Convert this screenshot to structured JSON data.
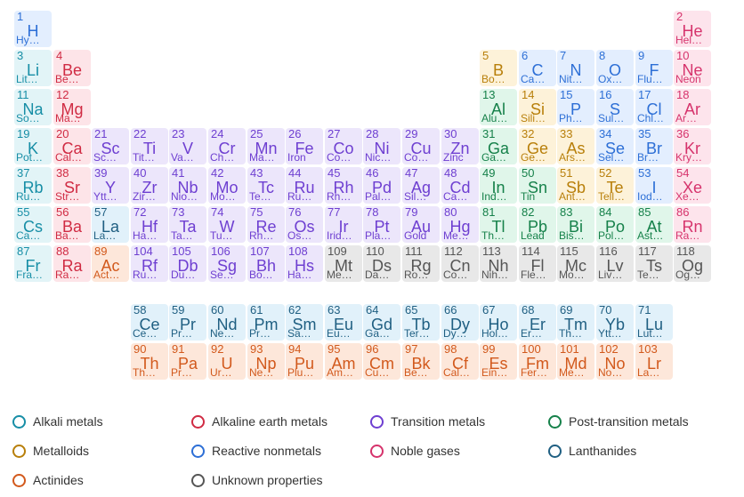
{
  "colors": {
    "alkali": "#178ea6",
    "alkaline": "#d02b43",
    "transition": "#6e3fd1",
    "post": "#16814a",
    "metalloid": "#b87f0a",
    "nonmetal": "#2d6fd6",
    "noble": "#d6336c",
    "lanth": "#1f5f82",
    "actin": "#d2591c",
    "unknown": "#555555"
  },
  "elements": [
    {
      "n": "1",
      "s": "H",
      "name": "Hy…",
      "cat": "nonmetal",
      "row": 1,
      "col": 1
    },
    {
      "n": "2",
      "s": "He",
      "name": "Hel…",
      "cat": "noble",
      "row": 1,
      "col": 18
    },
    {
      "n": "3",
      "s": "Li",
      "name": "Lit…",
      "cat": "alkali",
      "row": 2,
      "col": 1
    },
    {
      "n": "4",
      "s": "Be",
      "name": "Be…",
      "cat": "alkaline",
      "row": 2,
      "col": 2
    },
    {
      "n": "5",
      "s": "B",
      "name": "Bo…",
      "cat": "metalloid",
      "row": 2,
      "col": 13
    },
    {
      "n": "6",
      "s": "C",
      "name": "Ca…",
      "cat": "nonmetal",
      "row": 2,
      "col": 14
    },
    {
      "n": "7",
      "s": "N",
      "name": "Nit…",
      "cat": "nonmetal",
      "row": 2,
      "col": 15
    },
    {
      "n": "8",
      "s": "O",
      "name": "Ox…",
      "cat": "nonmetal",
      "row": 2,
      "col": 16
    },
    {
      "n": "9",
      "s": "F",
      "name": "Flu…",
      "cat": "nonmetal",
      "row": 2,
      "col": 17
    },
    {
      "n": "10",
      "s": "Ne",
      "name": "Neon",
      "cat": "noble",
      "row": 2,
      "col": 18
    },
    {
      "n": "11",
      "s": "Na",
      "name": "So…",
      "cat": "alkali",
      "row": 3,
      "col": 1
    },
    {
      "n": "12",
      "s": "Mg",
      "name": "Ma…",
      "cat": "alkaline",
      "row": 3,
      "col": 2
    },
    {
      "n": "13",
      "s": "Al",
      "name": "Alu…",
      "cat": "post",
      "row": 3,
      "col": 13
    },
    {
      "n": "14",
      "s": "Si",
      "name": "Sili…",
      "cat": "metalloid",
      "row": 3,
      "col": 14
    },
    {
      "n": "15",
      "s": "P",
      "name": "Ph…",
      "cat": "nonmetal",
      "row": 3,
      "col": 15
    },
    {
      "n": "16",
      "s": "S",
      "name": "Sul…",
      "cat": "nonmetal",
      "row": 3,
      "col": 16
    },
    {
      "n": "17",
      "s": "Cl",
      "name": "Chl…",
      "cat": "nonmetal",
      "row": 3,
      "col": 17
    },
    {
      "n": "18",
      "s": "Ar",
      "name": "Ar…",
      "cat": "noble",
      "row": 3,
      "col": 18
    },
    {
      "n": "19",
      "s": "K",
      "name": "Pot…",
      "cat": "alkali",
      "row": 4,
      "col": 1
    },
    {
      "n": "20",
      "s": "Ca",
      "name": "Cal…",
      "cat": "alkaline",
      "row": 4,
      "col": 2
    },
    {
      "n": "21",
      "s": "Sc",
      "name": "Sc…",
      "cat": "transition",
      "row": 4,
      "col": 3
    },
    {
      "n": "22",
      "s": "Ti",
      "name": "Tit…",
      "cat": "transition",
      "row": 4,
      "col": 4
    },
    {
      "n": "23",
      "s": "V",
      "name": "Va…",
      "cat": "transition",
      "row": 4,
      "col": 5
    },
    {
      "n": "24",
      "s": "Cr",
      "name": "Ch…",
      "cat": "transition",
      "row": 4,
      "col": 6
    },
    {
      "n": "25",
      "s": "Mn",
      "name": "Ma…",
      "cat": "transition",
      "row": 4,
      "col": 7
    },
    {
      "n": "26",
      "s": "Fe",
      "name": "Iron",
      "cat": "transition",
      "row": 4,
      "col": 8
    },
    {
      "n": "27",
      "s": "Co",
      "name": "Co…",
      "cat": "transition",
      "row": 4,
      "col": 9
    },
    {
      "n": "28",
      "s": "Ni",
      "name": "Nic…",
      "cat": "transition",
      "row": 4,
      "col": 10
    },
    {
      "n": "29",
      "s": "Cu",
      "name": "Co…",
      "cat": "transition",
      "row": 4,
      "col": 11
    },
    {
      "n": "30",
      "s": "Zn",
      "name": "Zinc",
      "cat": "transition",
      "row": 4,
      "col": 12
    },
    {
      "n": "31",
      "s": "Ga",
      "name": "Ga…",
      "cat": "post",
      "row": 4,
      "col": 13
    },
    {
      "n": "32",
      "s": "Ge",
      "name": "Ge…",
      "cat": "metalloid",
      "row": 4,
      "col": 14
    },
    {
      "n": "33",
      "s": "As",
      "name": "Ars…",
      "cat": "metalloid",
      "row": 4,
      "col": 15
    },
    {
      "n": "34",
      "s": "Se",
      "name": "Sel…",
      "cat": "nonmetal",
      "row": 4,
      "col": 16
    },
    {
      "n": "35",
      "s": "Br",
      "name": "Br…",
      "cat": "nonmetal",
      "row": 4,
      "col": 17
    },
    {
      "n": "36",
      "s": "Kr",
      "name": "Kry…",
      "cat": "noble",
      "row": 4,
      "col": 18
    },
    {
      "n": "37",
      "s": "Rb",
      "name": "Ru…",
      "cat": "alkali",
      "row": 5,
      "col": 1
    },
    {
      "n": "38",
      "s": "Sr",
      "name": "Str…",
      "cat": "alkaline",
      "row": 5,
      "col": 2
    },
    {
      "n": "39",
      "s": "Y",
      "name": "Ytt…",
      "cat": "transition",
      "row": 5,
      "col": 3
    },
    {
      "n": "40",
      "s": "Zr",
      "name": "Zir…",
      "cat": "transition",
      "row": 5,
      "col": 4
    },
    {
      "n": "41",
      "s": "Nb",
      "name": "Nio…",
      "cat": "transition",
      "row": 5,
      "col": 5
    },
    {
      "n": "42",
      "s": "Mo",
      "name": "Mo…",
      "cat": "transition",
      "row": 5,
      "col": 6
    },
    {
      "n": "43",
      "s": "Tc",
      "name": "Te…",
      "cat": "transition",
      "row": 5,
      "col": 7
    },
    {
      "n": "44",
      "s": "Ru",
      "name": "Ru…",
      "cat": "transition",
      "row": 5,
      "col": 8
    },
    {
      "n": "45",
      "s": "Rh",
      "name": "Rh…",
      "cat": "transition",
      "row": 5,
      "col": 9
    },
    {
      "n": "46",
      "s": "Pd",
      "name": "Pal…",
      "cat": "transition",
      "row": 5,
      "col": 10
    },
    {
      "n": "47",
      "s": "Ag",
      "name": "Sil…",
      "cat": "transition",
      "row": 5,
      "col": 11
    },
    {
      "n": "48",
      "s": "Cd",
      "name": "Ca…",
      "cat": "transition",
      "row": 5,
      "col": 12
    },
    {
      "n": "49",
      "s": "In",
      "name": "Ind…",
      "cat": "post",
      "row": 5,
      "col": 13
    },
    {
      "n": "50",
      "s": "Sn",
      "name": "Tin",
      "cat": "post",
      "row": 5,
      "col": 14
    },
    {
      "n": "51",
      "s": "Sb",
      "name": "Ant…",
      "cat": "metalloid",
      "row": 5,
      "col": 15
    },
    {
      "n": "52",
      "s": "Te",
      "name": "Tell…",
      "cat": "metalloid",
      "row": 5,
      "col": 16
    },
    {
      "n": "53",
      "s": "I",
      "name": "Iod…",
      "cat": "nonmetal",
      "row": 5,
      "col": 17
    },
    {
      "n": "54",
      "s": "Xe",
      "name": "Xe…",
      "cat": "noble",
      "row": 5,
      "col": 18
    },
    {
      "n": "55",
      "s": "Cs",
      "name": "Ca…",
      "cat": "alkali",
      "row": 6,
      "col": 1
    },
    {
      "n": "56",
      "s": "Ba",
      "name": "Ba…",
      "cat": "alkaline",
      "row": 6,
      "col": 2
    },
    {
      "n": "57",
      "s": "La",
      "name": "La…",
      "cat": "lanth",
      "row": 6,
      "col": 3
    },
    {
      "n": "72",
      "s": "Hf",
      "name": "Ha…",
      "cat": "transition",
      "row": 6,
      "col": 4
    },
    {
      "n": "73",
      "s": "Ta",
      "name": "Ta…",
      "cat": "transition",
      "row": 6,
      "col": 5
    },
    {
      "n": "74",
      "s": "W",
      "name": "Tu…",
      "cat": "transition",
      "row": 6,
      "col": 6
    },
    {
      "n": "75",
      "s": "Re",
      "name": "Rh…",
      "cat": "transition",
      "row": 6,
      "col": 7
    },
    {
      "n": "76",
      "s": "Os",
      "name": "Os…",
      "cat": "transition",
      "row": 6,
      "col": 8
    },
    {
      "n": "77",
      "s": "Ir",
      "name": "Irid…",
      "cat": "transition",
      "row": 6,
      "col": 9
    },
    {
      "n": "78",
      "s": "Pt",
      "name": "Pla…",
      "cat": "transition",
      "row": 6,
      "col": 10
    },
    {
      "n": "79",
      "s": "Au",
      "name": "Gold",
      "cat": "transition",
      "row": 6,
      "col": 11
    },
    {
      "n": "80",
      "s": "Hg",
      "name": "Me…",
      "cat": "transition",
      "row": 6,
      "col": 12
    },
    {
      "n": "81",
      "s": "Tl",
      "name": "Th…",
      "cat": "post",
      "row": 6,
      "col": 13
    },
    {
      "n": "82",
      "s": "Pb",
      "name": "Lead",
      "cat": "post",
      "row": 6,
      "col": 14
    },
    {
      "n": "83",
      "s": "Bi",
      "name": "Bis…",
      "cat": "post",
      "row": 6,
      "col": 15
    },
    {
      "n": "84",
      "s": "Po",
      "name": "Pol…",
      "cat": "post",
      "row": 6,
      "col": 16
    },
    {
      "n": "85",
      "s": "At",
      "name": "Ast…",
      "cat": "post",
      "row": 6,
      "col": 17
    },
    {
      "n": "86",
      "s": "Rn",
      "name": "Ra…",
      "cat": "noble",
      "row": 6,
      "col": 18
    },
    {
      "n": "87",
      "s": "Fr",
      "name": "Fra…",
      "cat": "alkali",
      "row": 7,
      "col": 1
    },
    {
      "n": "88",
      "s": "Ra",
      "name": "Ra…",
      "cat": "alkaline",
      "row": 7,
      "col": 2
    },
    {
      "n": "89",
      "s": "Ac",
      "name": "Act…",
      "cat": "actin",
      "row": 7,
      "col": 3
    },
    {
      "n": "104",
      "s": "Rf",
      "name": "Ru…",
      "cat": "transition",
      "row": 7,
      "col": 4
    },
    {
      "n": "105",
      "s": "Db",
      "name": "Du…",
      "cat": "transition",
      "row": 7,
      "col": 5
    },
    {
      "n": "106",
      "s": "Sg",
      "name": "Se…",
      "cat": "transition",
      "row": 7,
      "col": 6
    },
    {
      "n": "107",
      "s": "Bh",
      "name": "Bo…",
      "cat": "transition",
      "row": 7,
      "col": 7
    },
    {
      "n": "108",
      "s": "Hs",
      "name": "Ha…",
      "cat": "transition",
      "row": 7,
      "col": 8
    },
    {
      "n": "109",
      "s": "Mt",
      "name": "Me…",
      "cat": "unknown",
      "row": 7,
      "col": 9
    },
    {
      "n": "110",
      "s": "Ds",
      "name": "Da…",
      "cat": "unknown",
      "row": 7,
      "col": 10
    },
    {
      "n": "111",
      "s": "Rg",
      "name": "Ro…",
      "cat": "unknown",
      "row": 7,
      "col": 11
    },
    {
      "n": "112",
      "s": "Cn",
      "name": "Co…",
      "cat": "unknown",
      "row": 7,
      "col": 12
    },
    {
      "n": "113",
      "s": "Nh",
      "name": "Nih…",
      "cat": "unknown",
      "row": 7,
      "col": 13
    },
    {
      "n": "114",
      "s": "Fl",
      "name": "Fle…",
      "cat": "unknown",
      "row": 7,
      "col": 14
    },
    {
      "n": "115",
      "s": "Mc",
      "name": "Mo…",
      "cat": "unknown",
      "row": 7,
      "col": 15
    },
    {
      "n": "116",
      "s": "Lv",
      "name": "Liv…",
      "cat": "unknown",
      "row": 7,
      "col": 16
    },
    {
      "n": "117",
      "s": "Ts",
      "name": "Te…",
      "cat": "unknown",
      "row": 7,
      "col": 17
    },
    {
      "n": "118",
      "s": "Og",
      "name": "Og…",
      "cat": "unknown",
      "row": 7,
      "col": 18
    },
    {
      "n": "58",
      "s": "Ce",
      "name": "Ce…",
      "cat": "lanth",
      "row": 9,
      "col": 4
    },
    {
      "n": "59",
      "s": "Pr",
      "name": "Pr…",
      "cat": "lanth",
      "row": 9,
      "col": 5
    },
    {
      "n": "60",
      "s": "Nd",
      "name": "Ne…",
      "cat": "lanth",
      "row": 9,
      "col": 6
    },
    {
      "n": "61",
      "s": "Pm",
      "name": "Pr…",
      "cat": "lanth",
      "row": 9,
      "col": 7
    },
    {
      "n": "62",
      "s": "Sm",
      "name": "Sa…",
      "cat": "lanth",
      "row": 9,
      "col": 8
    },
    {
      "n": "63",
      "s": "Eu",
      "name": "Eu…",
      "cat": "lanth",
      "row": 9,
      "col": 9
    },
    {
      "n": "64",
      "s": "Gd",
      "name": "Ga…",
      "cat": "lanth",
      "row": 9,
      "col": 10
    },
    {
      "n": "65",
      "s": "Tb",
      "name": "Ter…",
      "cat": "lanth",
      "row": 9,
      "col": 11
    },
    {
      "n": "66",
      "s": "Dy",
      "name": "Dy…",
      "cat": "lanth",
      "row": 9,
      "col": 12
    },
    {
      "n": "67",
      "s": "Ho",
      "name": "Hol…",
      "cat": "lanth",
      "row": 9,
      "col": 13
    },
    {
      "n": "68",
      "s": "Er",
      "name": "Er…",
      "cat": "lanth",
      "row": 9,
      "col": 14
    },
    {
      "n": "69",
      "s": "Tm",
      "name": "Th…",
      "cat": "lanth",
      "row": 9,
      "col": 15
    },
    {
      "n": "70",
      "s": "Yb",
      "name": "Ytt…",
      "cat": "lanth",
      "row": 9,
      "col": 16
    },
    {
      "n": "71",
      "s": "Lu",
      "name": "Lut…",
      "cat": "lanth",
      "row": 9,
      "col": 17
    },
    {
      "n": "90",
      "s": "Th",
      "name": "Th…",
      "cat": "actin",
      "row": 10,
      "col": 4
    },
    {
      "n": "91",
      "s": "Pa",
      "name": "Pr…",
      "cat": "actin",
      "row": 10,
      "col": 5
    },
    {
      "n": "92",
      "s": "U",
      "name": "Ur…",
      "cat": "actin",
      "row": 10,
      "col": 6
    },
    {
      "n": "93",
      "s": "Np",
      "name": "Ne…",
      "cat": "actin",
      "row": 10,
      "col": 7
    },
    {
      "n": "94",
      "s": "Pu",
      "name": "Plu…",
      "cat": "actin",
      "row": 10,
      "col": 8
    },
    {
      "n": "95",
      "s": "Am",
      "name": "Am…",
      "cat": "actin",
      "row": 10,
      "col": 9
    },
    {
      "n": "96",
      "s": "Cm",
      "name": "Cu…",
      "cat": "actin",
      "row": 10,
      "col": 10
    },
    {
      "n": "97",
      "s": "Bk",
      "name": "Be…",
      "cat": "actin",
      "row": 10,
      "col": 11
    },
    {
      "n": "98",
      "s": "Cf",
      "name": "Cal…",
      "cat": "actin",
      "row": 10,
      "col": 12
    },
    {
      "n": "99",
      "s": "Es",
      "name": "Ein…",
      "cat": "actin",
      "row": 10,
      "col": 13
    },
    {
      "n": "100",
      "s": "Fm",
      "name": "Fer…",
      "cat": "actin",
      "row": 10,
      "col": 14
    },
    {
      "n": "101",
      "s": "Md",
      "name": "Me…",
      "cat": "actin",
      "row": 10,
      "col": 15
    },
    {
      "n": "102",
      "s": "No",
      "name": "No…",
      "cat": "actin",
      "row": 10,
      "col": 16
    },
    {
      "n": "103",
      "s": "Lr",
      "name": "La…",
      "cat": "actin",
      "row": 10,
      "col": 17
    }
  ],
  "legend": [
    {
      "label": "Alkali metals",
      "cat": "alkali"
    },
    {
      "label": "Alkaline earth metals",
      "cat": "alkaline"
    },
    {
      "label": "Transition metals",
      "cat": "transition"
    },
    {
      "label": "Post-transition metals",
      "cat": "post"
    },
    {
      "label": "Metalloids",
      "cat": "metalloid"
    },
    {
      "label": "Reactive nonmetals",
      "cat": "nonmetal"
    },
    {
      "label": "Noble gases",
      "cat": "noble"
    },
    {
      "label": "Lanthanides",
      "cat": "lanth"
    },
    {
      "label": "Actinides",
      "cat": "actin"
    },
    {
      "label": "Unknown properties",
      "cat": "unknown"
    }
  ]
}
